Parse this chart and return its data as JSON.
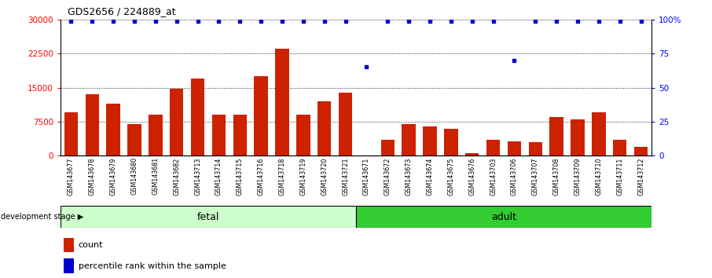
{
  "title": "GDS2656 / 224889_at",
  "categories": [
    "GSM143677",
    "GSM143678",
    "GSM143679",
    "GSM143680",
    "GSM143681",
    "GSM143682",
    "GSM143713",
    "GSM143714",
    "GSM143715",
    "GSM143716",
    "GSM143718",
    "GSM143719",
    "GSM143720",
    "GSM143721",
    "GSM143671",
    "GSM143672",
    "GSM143673",
    "GSM143674",
    "GSM143675",
    "GSM143676",
    "GSM143703",
    "GSM143706",
    "GSM143707",
    "GSM143708",
    "GSM143709",
    "GSM143710",
    "GSM143711",
    "GSM143712"
  ],
  "counts": [
    9500,
    13500,
    11500,
    7000,
    9000,
    14800,
    17000,
    9000,
    9000,
    17500,
    23500,
    9000,
    12000,
    13800,
    100,
    3500,
    7000,
    6500,
    6000,
    500,
    3500,
    3200,
    3000,
    8500,
    8000,
    9500,
    3500,
    2000
  ],
  "percentile_ranks": [
    99,
    99,
    99,
    99,
    99,
    99,
    99,
    99,
    99,
    99,
    99,
    99,
    99,
    99,
    65,
    99,
    99,
    99,
    99,
    99,
    99,
    70,
    99,
    99,
    99,
    99,
    99,
    99
  ],
  "fetal_count": 14,
  "ylim_left": [
    0,
    30000
  ],
  "ylim_right": [
    0,
    100
  ],
  "yticks_left": [
    0,
    7500,
    15000,
    22500,
    30000
  ],
  "yticks_right": [
    0,
    25,
    50,
    75,
    100
  ],
  "bar_color": "#cc2200",
  "dot_color": "#0000cc",
  "fetal_bg": "#ccffcc",
  "adult_bg": "#33cc33",
  "label_bg": "#cccccc",
  "dev_stage_label": "development stage",
  "fetal_label": "fetal",
  "adult_label": "adult",
  "legend_count": "count",
  "legend_pct": "percentile rank within the sample"
}
